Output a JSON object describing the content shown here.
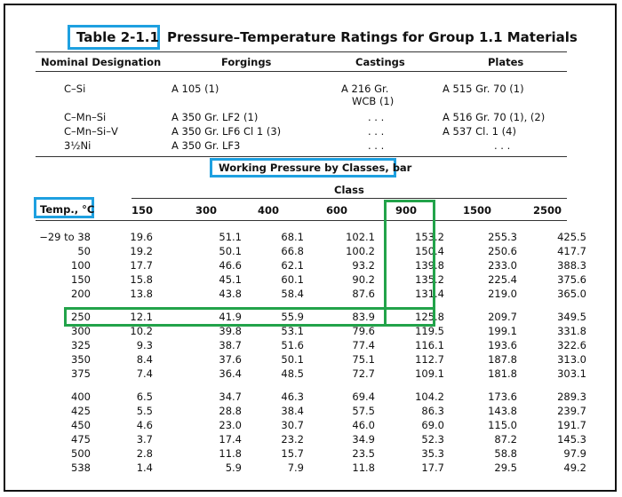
{
  "table": {
    "number": "Table 2-1.1",
    "title": "Pressure–Temperature Ratings for Group 1.1 Materials"
  },
  "materials": {
    "headers": [
      "Nominal Designation",
      "Forgings",
      "Castings",
      "Plates"
    ],
    "rows": [
      {
        "designation": "C–Si",
        "forgings": "A 105 (1)",
        "castings": "A 216 Gr.",
        "plates": "A 515 Gr. 70 (1)"
      },
      {
        "designation": "",
        "forgings": "",
        "castings": "WCB (1)",
        "plates": ""
      },
      {
        "designation": "C–Mn–Si",
        "forgings": "A 350 Gr. LF2 (1)",
        "castings": ". . .",
        "plates": "A 516 Gr. 70 (1), (2)"
      },
      {
        "designation": "C–Mn–Si–V",
        "forgings": "A 350 Gr. LF6 Cl 1 (3)",
        "castings": ". . .",
        "plates": "A 537 Cl. 1 (4)"
      },
      {
        "designation": "3½Ni",
        "forgings": "A 350 Gr. LF3",
        "castings": ". . .",
        "plates": ". . ."
      }
    ]
  },
  "working_pressure": {
    "heading": "Working Pressure by Classes, bar",
    "class_label": "Class",
    "temp_header": "Temp., °C",
    "classes": [
      "150",
      "300",
      "400",
      "600",
      "900",
      "1500",
      "2500"
    ],
    "rows": [
      {
        "temp": "−29 to 38",
        "v": [
          "19.6",
          "51.1",
          "68.1",
          "102.1",
          "153.2",
          "255.3",
          "425.5"
        ]
      },
      {
        "temp": "50",
        "v": [
          "19.2",
          "50.1",
          "66.8",
          "100.2",
          "150.4",
          "250.6",
          "417.7"
        ]
      },
      {
        "temp": "100",
        "v": [
          "17.7",
          "46.6",
          "62.1",
          "93.2",
          "139.8",
          "233.0",
          "388.3"
        ]
      },
      {
        "temp": "150",
        "v": [
          "15.8",
          "45.1",
          "60.1",
          "90.2",
          "135.2",
          "225.4",
          "375.6"
        ]
      },
      {
        "temp": "200",
        "v": [
          "13.8",
          "43.8",
          "58.4",
          "87.6",
          "131.4",
          "219.0",
          "365.0"
        ]
      },
      {
        "temp": "250",
        "v": [
          "12.1",
          "41.9",
          "55.9",
          "83.9",
          "125.8",
          "209.7",
          "349.5"
        ]
      },
      {
        "temp": "300",
        "v": [
          "10.2",
          "39.8",
          "53.1",
          "79.6",
          "119.5",
          "199.1",
          "331.8"
        ]
      },
      {
        "temp": "325",
        "v": [
          "9.3",
          "38.7",
          "51.6",
          "77.4",
          "116.1",
          "193.6",
          "322.6"
        ]
      },
      {
        "temp": "350",
        "v": [
          "8.4",
          "37.6",
          "50.1",
          "75.1",
          "112.7",
          "187.8",
          "313.0"
        ]
      },
      {
        "temp": "375",
        "v": [
          "7.4",
          "36.4",
          "48.5",
          "72.7",
          "109.1",
          "181.8",
          "303.1"
        ]
      },
      {
        "temp": "400",
        "v": [
          "6.5",
          "34.7",
          "46.3",
          "69.4",
          "104.2",
          "173.6",
          "289.3"
        ]
      },
      {
        "temp": "425",
        "v": [
          "5.5",
          "28.8",
          "38.4",
          "57.5",
          "86.3",
          "143.8",
          "239.7"
        ]
      },
      {
        "temp": "450",
        "v": [
          "4.6",
          "23.0",
          "30.7",
          "46.0",
          "69.0",
          "115.0",
          "191.7"
        ]
      },
      {
        "temp": "475",
        "v": [
          "3.7",
          "17.4",
          "23.2",
          "34.9",
          "52.3",
          "87.2",
          "145.3"
        ]
      },
      {
        "temp": "500",
        "v": [
          "2.8",
          "11.8",
          "15.7",
          "23.5",
          "35.3",
          "58.8",
          "97.9"
        ]
      },
      {
        "temp": "538",
        "v": [
          "1.4",
          "5.9",
          "7.9",
          "11.8",
          "17.7",
          "29.5",
          "49.2"
        ]
      }
    ]
  },
  "highlights": {
    "blue": "#1ea0e0",
    "green": "#22a34a"
  }
}
